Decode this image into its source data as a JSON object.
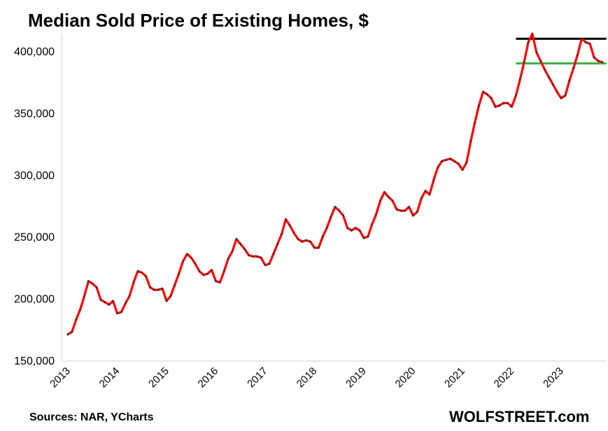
{
  "chart_data": {
    "type": "line",
    "title": "Median Sold Price of Existing Homes, $",
    "xlabel": "",
    "ylabel": "",
    "ylim": [
      150000,
      420000
    ],
    "yticks": [
      150000,
      200000,
      250000,
      300000,
      350000,
      400000
    ],
    "ytick_labels": [
      "150,000",
      "200,000",
      "250,000",
      "300,000",
      "350,000",
      "400,000"
    ],
    "xtick_labels": [
      "2013",
      "2014",
      "2015",
      "2016",
      "2017",
      "2018",
      "2019",
      "2020",
      "2021",
      "2022",
      "2023"
    ],
    "grid": false,
    "legend": "none",
    "line_color": "#ff0000",
    "marker_color": "#333333",
    "x_start": "2013-01",
    "frequency": "monthly",
    "series": [
      {
        "values": [
          171000,
          173000,
          183000,
          191000,
          202000,
          214000,
          212000,
          209000,
          199000,
          197000,
          195000,
          198000,
          188000,
          189000,
          196000,
          202000,
          213000,
          222000,
          221000,
          218000,
          209000,
          207000,
          207000,
          208000,
          198000,
          202000,
          211000,
          220000,
          230000,
          236000,
          233000,
          228000,
          222000,
          219000,
          220000,
          223000,
          214000,
          213000,
          222000,
          232000,
          238000,
          248000,
          244000,
          240000,
          235000,
          234000,
          234000,
          233000,
          227000,
          228000,
          236000,
          244000,
          252000,
          264000,
          259000,
          253000,
          248000,
          246000,
          247000,
          246000,
          241000,
          241000,
          250000,
          257000,
          266000,
          274000,
          271000,
          267000,
          257000,
          255000,
          257000,
          255000,
          249000,
          250000,
          260000,
          268000,
          279000,
          286000,
          282000,
          279000,
          272000,
          271000,
          271000,
          274000,
          267000,
          270000,
          281000,
          287000,
          284000,
          296000,
          306000,
          311000,
          312000,
          313000,
          311000,
          309000,
          304000,
          310000,
          327000,
          342000,
          356000,
          367000,
          365000,
          362000,
          355000,
          356000,
          358000,
          358000,
          355000,
          364000,
          377000,
          391000,
          407000,
          414000,
          399000,
          392000,
          385000,
          379000,
          373000,
          367000,
          362000,
          364000,
          376000,
          386000,
          397000,
          410000,
          407000,
          406000,
          395000,
          392000,
          391000
        ]
      }
    ],
    "reference_lines": [
      {
        "value": 410000,
        "color": "#000000",
        "x_from": "2022-02",
        "x_to": "2023-12"
      },
      {
        "value": 390000,
        "color": "#3cb043",
        "x_from": "2022-02",
        "x_to": "2023-12"
      }
    ]
  },
  "footer": {
    "source": "Sources: NAR, YCharts",
    "brand": "WOLFSTREET.com"
  }
}
